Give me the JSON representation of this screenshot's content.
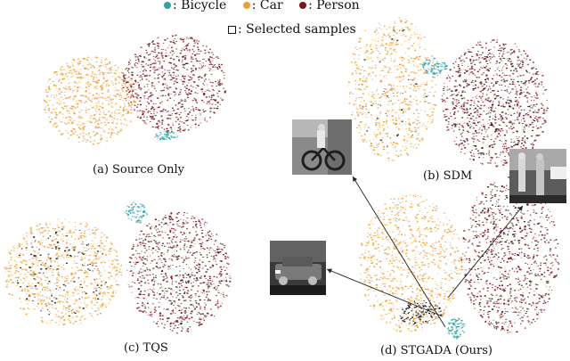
{
  "legend": {
    "classes": [
      {
        "label": ": Bicycle",
        "color": "#2fa3a8"
      },
      {
        "label": ": Car",
        "color": "#f0a030"
      },
      {
        "label": ": Person",
        "color": "#7a1518"
      }
    ],
    "selected_label": ": Selected samples"
  },
  "panels": [
    {
      "id": "a",
      "caption": "(a) Source Only"
    },
    {
      "id": "b",
      "caption": "(b) SDM"
    },
    {
      "id": "c",
      "caption": "(c) TQS"
    },
    {
      "id": "d",
      "caption": "(d) STGADA (Ours)"
    }
  ],
  "colors": {
    "bicycle": "#2fa3a8",
    "car": "#f0a030",
    "person": "#7a1518",
    "selected": "#111111",
    "arrow": "#222222"
  },
  "thumbnails": [
    {
      "name": "bicycle-sample-thumbnail",
      "depicts": "cyclist riding a bicycle"
    },
    {
      "name": "person-sample-thumbnail",
      "depicts": "pedestrians standing"
    },
    {
      "name": "car-sample-thumbnail",
      "depicts": "car on a street"
    }
  ]
}
